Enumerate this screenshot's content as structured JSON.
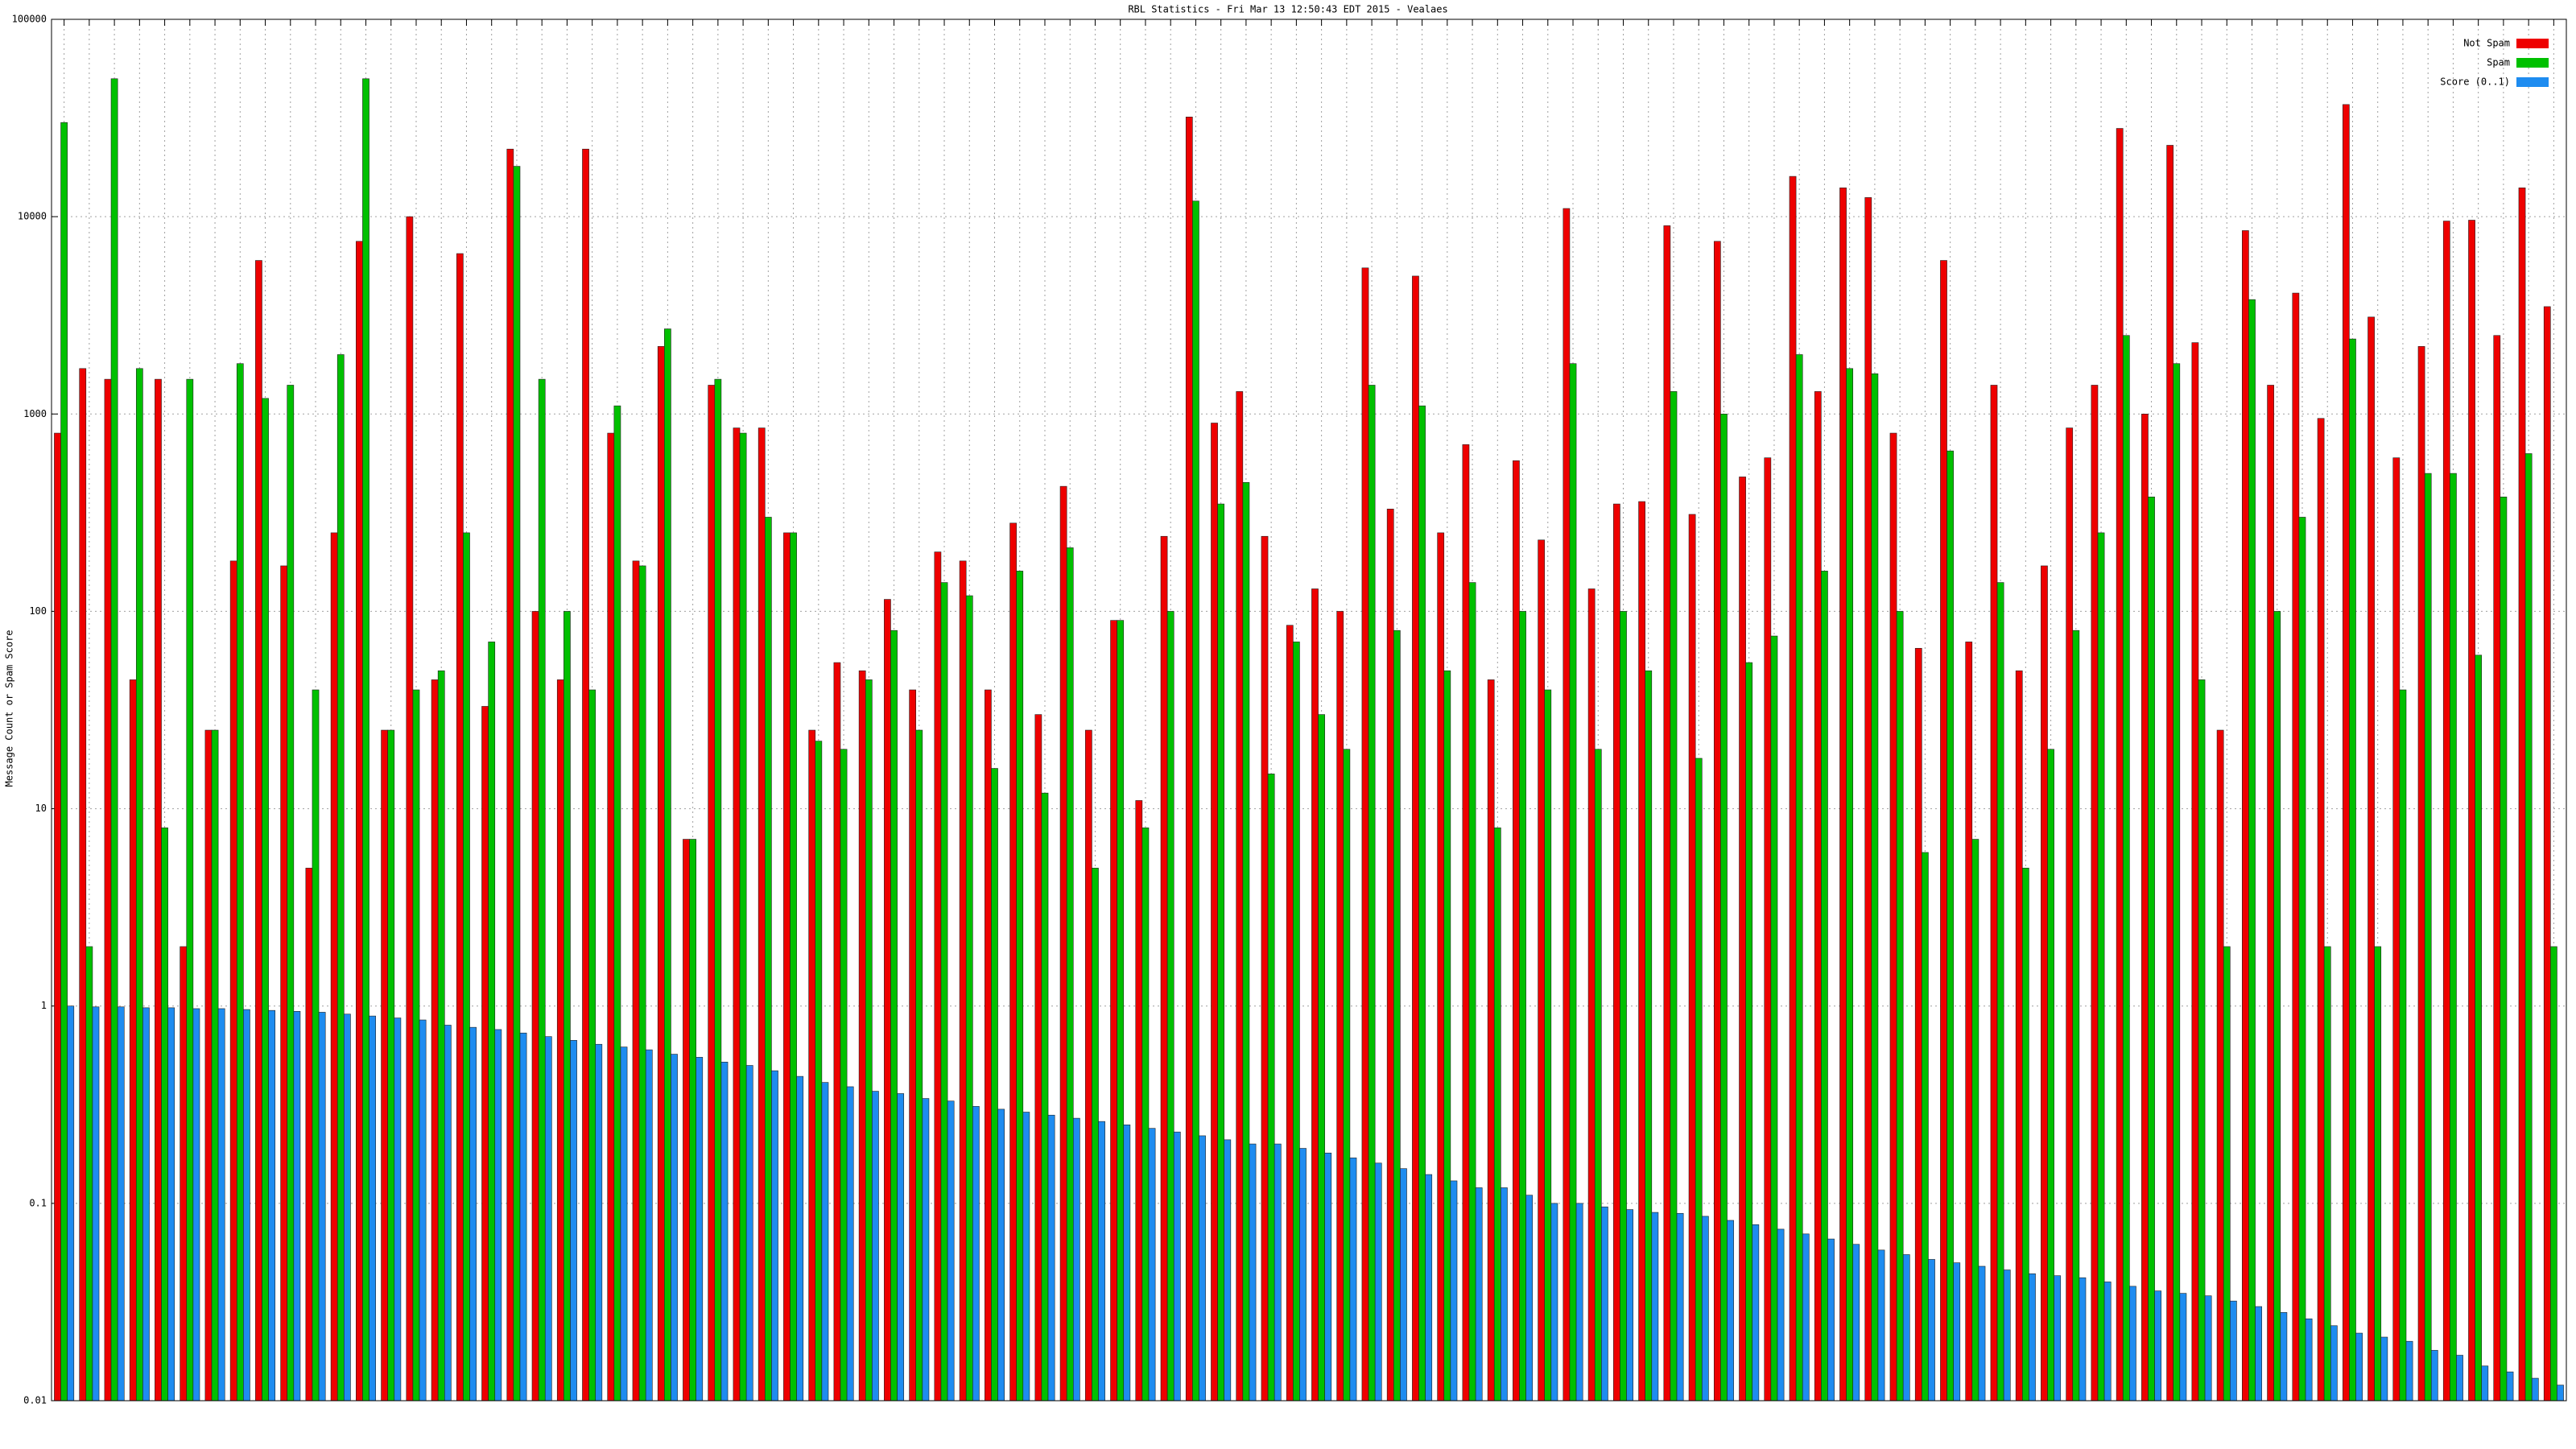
{
  "chart_data": {
    "type": "bar",
    "title": "RBL Statistics - Fri Mar 13 12:50:43 EDT 2015 - Vealaes",
    "y_label": "Message Count or Spam Score",
    "log_y": true,
    "grid": true,
    "legend": "upper right",
    "ylim": [
      0.01,
      100000
    ],
    "yticks": [
      0.01,
      0.1,
      1,
      10,
      100,
      1000,
      10000,
      100000
    ],
    "series": [
      {
        "name": "Not Spam",
        "color": "#ee0000",
        "values": [
          800,
          1700,
          1500,
          45,
          1500,
          2,
          25,
          180,
          6000,
          170,
          5,
          250,
          7500,
          25,
          10000,
          45,
          6500,
          33,
          22000,
          100,
          45,
          22000,
          800,
          180,
          2200,
          7,
          1400,
          850,
          850,
          250,
          25,
          55,
          50,
          115,
          40,
          200,
          180,
          40,
          280,
          30,
          430,
          25,
          90,
          11,
          240,
          32000,
          900,
          1300,
          240,
          85,
          130,
          100,
          5500,
          330,
          5000,
          250,
          700,
          45,
          580,
          230,
          11000,
          130,
          350,
          360,
          9000,
          310,
          7500,
          480,
          600,
          16000,
          1300,
          14000,
          12500,
          800,
          65,
          6000,
          70,
          1400,
          50,
          170,
          850,
          1400,
          28000,
          1000,
          23000,
          2300,
          25,
          8500,
          1400,
          4100,
          950,
          37000,
          3100,
          600,
          2200,
          9500,
          9600,
          2500,
          14000,
          3500
        ]
      },
      {
        "name": "Spam",
        "color": "#00c000",
        "values": [
          30000,
          2,
          50000,
          1700,
          8,
          1500,
          25,
          1800,
          1200,
          1400,
          40,
          2000,
          50000,
          25,
          40,
          50,
          250,
          70,
          18000,
          1500,
          100,
          40,
          1100,
          170,
          2700,
          7,
          1500,
          800,
          300,
          250,
          22,
          20,
          45,
          80,
          25,
          140,
          120,
          16,
          160,
          12,
          210,
          5,
          90,
          8,
          100,
          12000,
          350,
          450,
          15,
          70,
          30,
          20,
          1400,
          80,
          1100,
          50,
          140,
          8,
          100,
          40,
          1800,
          20,
          100,
          50,
          1300,
          18,
          1000,
          55,
          75,
          2000,
          160,
          1700,
          1600,
          100,
          6,
          650,
          7,
          140,
          5,
          20,
          80,
          250,
          2500,
          380,
          1800,
          45,
          2,
          3800,
          100,
          300,
          2,
          2400,
          2,
          40,
          500,
          500,
          60,
          380,
          630,
          2
        ]
      },
      {
        "name": "Score (0..1)",
        "color": "#1e8cf0",
        "values": [
          1,
          0.99,
          0.99,
          0.98,
          0.98,
          0.97,
          0.97,
          0.96,
          0.95,
          0.94,
          0.93,
          0.91,
          0.89,
          0.87,
          0.85,
          0.8,
          0.78,
          0.76,
          0.73,
          0.7,
          0.67,
          0.64,
          0.62,
          0.6,
          0.57,
          0.55,
          0.52,
          0.5,
          0.47,
          0.44,
          0.41,
          0.39,
          0.37,
          0.36,
          0.34,
          0.33,
          0.31,
          0.3,
          0.29,
          0.28,
          0.27,
          0.26,
          0.25,
          0.24,
          0.23,
          0.22,
          0.21,
          0.2,
          0.2,
          0.19,
          0.18,
          0.17,
          0.16,
          0.15,
          0.14,
          0.13,
          0.12,
          0.12,
          0.11,
          0.1,
          0.1,
          0.096,
          0.093,
          0.09,
          0.089,
          0.086,
          0.082,
          0.078,
          0.074,
          0.07,
          0.066,
          0.062,
          0.058,
          0.055,
          0.052,
          0.05,
          0.048,
          0.046,
          0.044,
          0.043,
          0.042,
          0.04,
          0.038,
          0.036,
          0.035,
          0.034,
          0.032,
          0.03,
          0.028,
          0.026,
          0.024,
          0.022,
          0.021,
          0.02,
          0.018,
          0.017,
          0.015,
          0.014,
          0.013,
          0.012
        ]
      }
    ]
  }
}
